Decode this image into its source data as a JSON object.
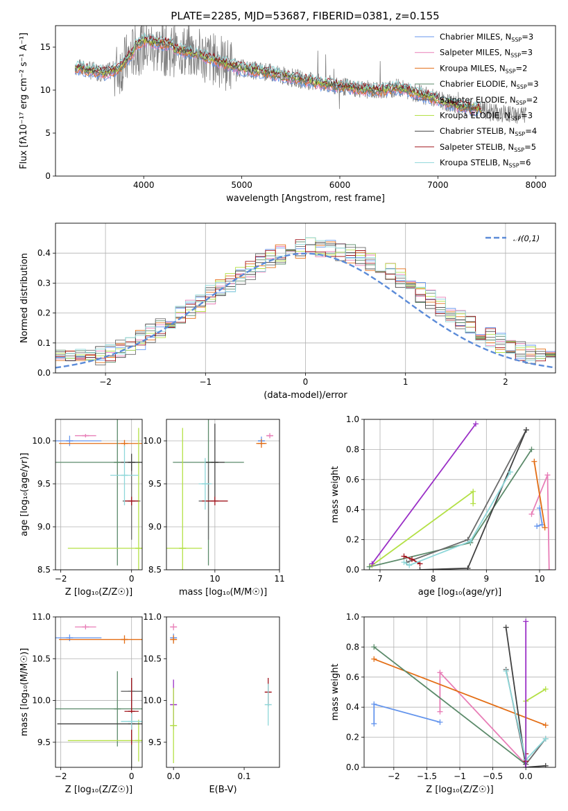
{
  "figure": {
    "title": "PLATE=2285, MJD=53687, FIBERID=0381, z=0.155"
  },
  "series_colors": [
    "#6495ed",
    "#e87eb7",
    "#e36d14",
    "#5b8a6a",
    "#6a6a6a",
    "#b3e045",
    "#404040",
    "#a0141c",
    "#8ed7d9"
  ],
  "chart_data": [
    {
      "id": "spectrum",
      "type": "line",
      "xlabel": "wavelength [Angstrom, rest frame]",
      "ylabel": "Flux [fλ10⁻¹⁷ erg cm⁻² s⁻¹ A⁻¹]",
      "xlim": [
        3100,
        8200
      ],
      "ylim": [
        0,
        17.5
      ],
      "xticks": [
        4000,
        5000,
        6000,
        7000,
        8000
      ],
      "yticks": [
        0,
        5,
        10,
        15
      ],
      "grid": false,
      "legend_position": "right",
      "series": [
        {
          "name": "Chabrier MILES, N_SSP=3",
          "color": "#6495ed"
        },
        {
          "name": "Salpeter MILES, N_SSP=3",
          "color": "#e87eb7"
        },
        {
          "name": "Kroupa MILES, N_SSP=2",
          "color": "#e36d14"
        },
        {
          "name": "Chabrier ELODIE, N_SSP=3",
          "color": "#5b8a6a"
        },
        {
          "name": "Salpeter ELODIE, N_SSP=2",
          "color": "#6a6a6a"
        },
        {
          "name": "Kroupa ELODIE, N_SSP=3",
          "color": "#b3e045"
        },
        {
          "name": "Chabrier STELIB, N_SSP=4",
          "color": "#404040"
        },
        {
          "name": "Salpeter STELIB, N_SSP=5",
          "color": "#a0141c"
        },
        {
          "name": "Kroupa STELIB, N_SSP=6",
          "color": "#8ed7d9"
        }
      ],
      "continuum": {
        "x": [
          3300,
          3450,
          3600,
          3750,
          3900,
          4000,
          4200,
          4400,
          4600,
          4800,
          5000,
          5200,
          5500,
          5800,
          6100,
          6400,
          6600,
          6800,
          7000,
          7200,
          7400,
          7600,
          7800
        ],
        "y": [
          12.7,
          12.3,
          12.0,
          12.5,
          14.5,
          15.2,
          14.8,
          14.6,
          14.0,
          13.2,
          12.5,
          12.2,
          11.5,
          10.8,
          10.3,
          9.9,
          10.3,
          9.6,
          8.9,
          8.2,
          7.8,
          7.3,
          7.1
        ]
      },
      "data_start": 3300,
      "data_end": 7900,
      "model_end": 7450
    },
    {
      "id": "residual_hist",
      "type": "histogram",
      "xlabel": "(data-model)/error",
      "ylabel": "Normed distribution",
      "xlim": [
        -2.5,
        2.5
      ],
      "ylim": [
        0,
        0.5
      ],
      "xticks": [
        -2,
        -1,
        0,
        1,
        2
      ],
      "yticks": [
        0.0,
        0.1,
        0.2,
        0.3,
        0.4
      ],
      "grid": true,
      "legend": "𝒩(0,1)",
      "gaussian": {
        "mean": 0,
        "sigma": 1,
        "color": "#5b8bd8"
      },
      "bin_edges_start": -2.5,
      "bin_width": 0.1
    },
    {
      "id": "age_vs_Z",
      "type": "errorbar",
      "xlabel": "Z [log₁₀(Z/Z☉)]",
      "ylabel": "age  [log₁₀(age/yr)]",
      "xlim": [
        -2.15,
        0.3
      ],
      "ylim": [
        8.5,
        10.25
      ],
      "xticks": [
        -2,
        0
      ],
      "yticks": [
        8.5,
        9.0,
        9.5,
        10.0
      ],
      "grid": true,
      "points": [
        {
          "s": 0,
          "x": -1.75,
          "y": 10.0,
          "xe": 0.9,
          "ye": 0.06
        },
        {
          "s": 1,
          "x": -1.3,
          "y": 10.06,
          "xe": 0.3,
          "ye": 0.02
        },
        {
          "s": 2,
          "x": -0.2,
          "y": 9.97,
          "xe": 1.85,
          "ye": 0.04
        },
        {
          "s": 3,
          "x": -0.4,
          "y": 9.75,
          "xe": 1.75,
          "ye": 1.2
        },
        {
          "s": 4,
          "x": 0.0,
          "y": 9.3,
          "xe": 0.25,
          "ye": 0.45
        },
        {
          "s": 5,
          "x": 0.2,
          "y": 8.75,
          "xe": 2.0,
          "ye": 1.4
        },
        {
          "s": 6,
          "x": 0.0,
          "y": 9.75,
          "xe": 0.3,
          "ye": 0.1
        },
        {
          "s": 7,
          "x": 0.0,
          "y": 9.3,
          "xe": 0.2,
          "ye": 0.05
        },
        {
          "s": 8,
          "x": -0.2,
          "y": 9.6,
          "xe": 0.4,
          "ye": 0.35
        }
      ]
    },
    {
      "id": "age_vs_mass",
      "type": "errorbar",
      "xlabel": "mass [log₁₀(M/M☉)]",
      "ylabel": "",
      "xlim": [
        9.25,
        11.0
      ],
      "ylim": [
        8.5,
        10.25
      ],
      "xticks": [
        10,
        11
      ],
      "yticks": [
        8.5,
        9.0,
        9.5,
        10.0
      ],
      "grid": true,
      "points": [
        {
          "s": 0,
          "x": 10.72,
          "y": 10.0,
          "xe": 0.05,
          "ye": 0.05
        },
        {
          "s": 1,
          "x": 10.85,
          "y": 10.06,
          "xe": 0.04,
          "ye": 0.03
        },
        {
          "s": 2,
          "x": 10.72,
          "y": 9.97,
          "xe": 0.08,
          "ye": 0.05
        },
        {
          "s": 3,
          "x": 9.9,
          "y": 9.75,
          "xe": 0.55,
          "ye": 1.2
        },
        {
          "s": 4,
          "x": 9.9,
          "y": 9.3,
          "xe": 0.15,
          "ye": 0.45
        },
        {
          "s": 5,
          "x": 9.5,
          "y": 8.75,
          "xe": 0.3,
          "ye": 1.4
        },
        {
          "s": 6,
          "x": 10.0,
          "y": 9.75,
          "xe": 0.15,
          "ye": 0.45
        },
        {
          "s": 7,
          "x": 10.0,
          "y": 9.3,
          "xe": 0.2,
          "ye": 0.05
        },
        {
          "s": 8,
          "x": 9.85,
          "y": 9.5,
          "xe": 0.1,
          "ye": 0.3
        }
      ]
    },
    {
      "id": "weight_vs_age",
      "type": "line",
      "xlabel": "age  [log₁₀(age/yr)]",
      "ylabel": "mass weight",
      "xlim": [
        6.7,
        10.3
      ],
      "ylim": [
        0,
        1.0
      ],
      "xticks": [
        7,
        8,
        9,
        10
      ],
      "yticks": [
        0.0,
        0.2,
        0.4,
        0.6,
        0.8,
        1.0
      ],
      "grid": true,
      "series": [
        {
          "s": 0,
          "x": [
            9.95,
            10.05,
            10.0
          ],
          "y": [
            0.29,
            0.3,
            0.41
          ]
        },
        {
          "s": 1,
          "x": [
            9.85,
            10.15,
            10.18
          ],
          "y": [
            0.37,
            0.63,
            0.0
          ]
        },
        {
          "s": 2,
          "x": [
            9.9,
            10.1
          ],
          "y": [
            0.72,
            0.28
          ]
        },
        {
          "s": 3,
          "x": [
            6.8,
            8.7,
            9.85
          ],
          "y": [
            0.02,
            0.18,
            0.8
          ]
        },
        {
          "s": 4,
          "x": [
            7.5,
            8.65,
            9.75
          ],
          "y": [
            0.05,
            0.2,
            0.93
          ]
        },
        {
          "s": 5,
          "x": [
            6.85,
            8.75,
            8.75
          ],
          "y": [
            0.03,
            0.52,
            0.44
          ]
        },
        {
          "s": 6,
          "x": [
            7.75,
            8.65,
            9.75
          ],
          "y": [
            0.0,
            0.01,
            0.93
          ]
        },
        {
          "s": 7,
          "x": [
            7.45,
            7.6,
            7.75
          ],
          "y": [
            0.09,
            0.07,
            0.04
          ]
        },
        {
          "s": 8,
          "x": [
            7.45,
            7.55,
            8.7,
            9.45
          ],
          "y": [
            0.05,
            0.03,
            0.19,
            0.65
          ]
        },
        {
          "s": 9,
          "x": [
            6.85,
            8.8
          ],
          "y": [
            0.04,
            0.97
          ]
        }
      ]
    },
    {
      "id": "mass_vs_Z",
      "type": "errorbar",
      "xlabel": "Z [log₁₀(Z/Z☉)]",
      "ylabel": "mass [log₁₀(M/M☉)]",
      "xlim": [
        -2.15,
        0.3
      ],
      "ylim": [
        9.2,
        11.0
      ],
      "xticks": [
        -2,
        0
      ],
      "yticks": [
        9.5,
        10.0,
        10.5,
        11.0
      ],
      "grid": true,
      "points": [
        {
          "s": 0,
          "x": -1.75,
          "y": 10.75,
          "xe": 0.9,
          "ye": 0.04
        },
        {
          "s": 1,
          "x": -1.3,
          "y": 10.88,
          "xe": 0.3,
          "ye": 0.03
        },
        {
          "s": 2,
          "x": -0.2,
          "y": 10.73,
          "xe": 1.85,
          "ye": 0.05
        },
        {
          "s": 3,
          "x": -0.4,
          "y": 9.9,
          "xe": 1.75,
          "ye": 0.45
        },
        {
          "s": 4,
          "x": 0.0,
          "y": 10.11,
          "xe": 0.3,
          "ye": 0.15
        },
        {
          "s": 5,
          "x": 0.2,
          "y": 9.52,
          "xe": 2.0,
          "ye": 0.25
        },
        {
          "s": 6,
          "x": 0.0,
          "y": 9.72,
          "xe": 2.1,
          "ye": 0.55
        },
        {
          "s": 7,
          "x": 0.0,
          "y": 9.87,
          "xe": 0.2,
          "ye": 0.4
        },
        {
          "s": 8,
          "x": 0.0,
          "y": 9.75,
          "xe": 0.3,
          "ye": 0.1
        }
      ]
    },
    {
      "id": "mass_vs_EBV",
      "type": "errorbar",
      "xlabel": "E(B-V)",
      "ylabel": "",
      "xlim": [
        -0.01,
        0.15
      ],
      "ylim": [
        9.2,
        11.0
      ],
      "xticks": [
        0.0,
        0.1
      ],
      "yticks": [
        9.5,
        10.0,
        10.5,
        11.0
      ],
      "grid": false,
      "points": [
        {
          "s": 0,
          "x": 0.0,
          "y": 10.75,
          "xe": 0.0,
          "ye": 0.05
        },
        {
          "s": 1,
          "x": 0.0,
          "y": 10.88,
          "xe": 0.0,
          "ye": 0.04
        },
        {
          "s": 2,
          "x": 0.0,
          "y": 10.73,
          "xe": 0.0,
          "ye": 0.05
        },
        {
          "s": 9,
          "x": 0.0,
          "y": 9.95,
          "xe": 0.0,
          "ye": 0.3
        },
        {
          "s": 5,
          "x": 0.0,
          "y": 9.7,
          "xe": 0.0,
          "ye": 0.45
        },
        {
          "s": 7,
          "x": 0.134,
          "y": 10.1,
          "xe": 0.0,
          "ye": 0.17
        },
        {
          "s": 8,
          "x": 0.134,
          "y": 9.95,
          "xe": 0.0,
          "ye": 0.25
        }
      ]
    },
    {
      "id": "weight_vs_Z",
      "type": "line",
      "xlabel": "Z [log₁₀(Z/Z☉)]",
      "ylabel": "mass weight",
      "xlim": [
        -2.45,
        0.45
      ],
      "ylim": [
        0,
        1.0
      ],
      "xticks": [
        -2.0,
        -1.5,
        -1.0,
        -0.5,
        0.0
      ],
      "yticks": [
        0.0,
        0.2,
        0.4,
        0.6,
        0.8,
        1.0
      ],
      "grid": true,
      "series": [
        {
          "s": 0,
          "x": [
            -2.3,
            -2.3,
            -1.3
          ],
          "y": [
            0.29,
            0.42,
            0.3
          ]
        },
        {
          "s": 1,
          "x": [
            -1.3,
            -1.3,
            0.0
          ],
          "y": [
            0.37,
            0.63,
            0.02
          ]
        },
        {
          "s": 2,
          "x": [
            -2.3,
            0.3
          ],
          "y": [
            0.72,
            0.28
          ]
        },
        {
          "s": 3,
          "x": [
            -2.3,
            0.0
          ],
          "y": [
            0.8,
            0.02
          ]
        },
        {
          "s": 4,
          "x": [
            -0.3,
            0.0,
            0.3
          ],
          "y": [
            0.65,
            0.02,
            0.19
          ]
        },
        {
          "s": 5,
          "x": [
            0.0,
            0.0,
            0.3
          ],
          "y": [
            0.05,
            0.44,
            0.52
          ]
        },
        {
          "s": 6,
          "x": [
            -0.3,
            0.0,
            0.3
          ],
          "y": [
            0.93,
            0.0,
            0.01
          ]
        },
        {
          "s": 7,
          "x": [
            0.0,
            0.0
          ],
          "y": [
            0.09,
            0.04
          ]
        },
        {
          "s": 8,
          "x": [
            -0.3,
            0.0,
            0.3
          ],
          "y": [
            0.64,
            0.05,
            0.19
          ]
        },
        {
          "s": 9,
          "x": [
            0.0,
            0.0
          ],
          "y": [
            0.97,
            0.0
          ]
        }
      ]
    }
  ]
}
